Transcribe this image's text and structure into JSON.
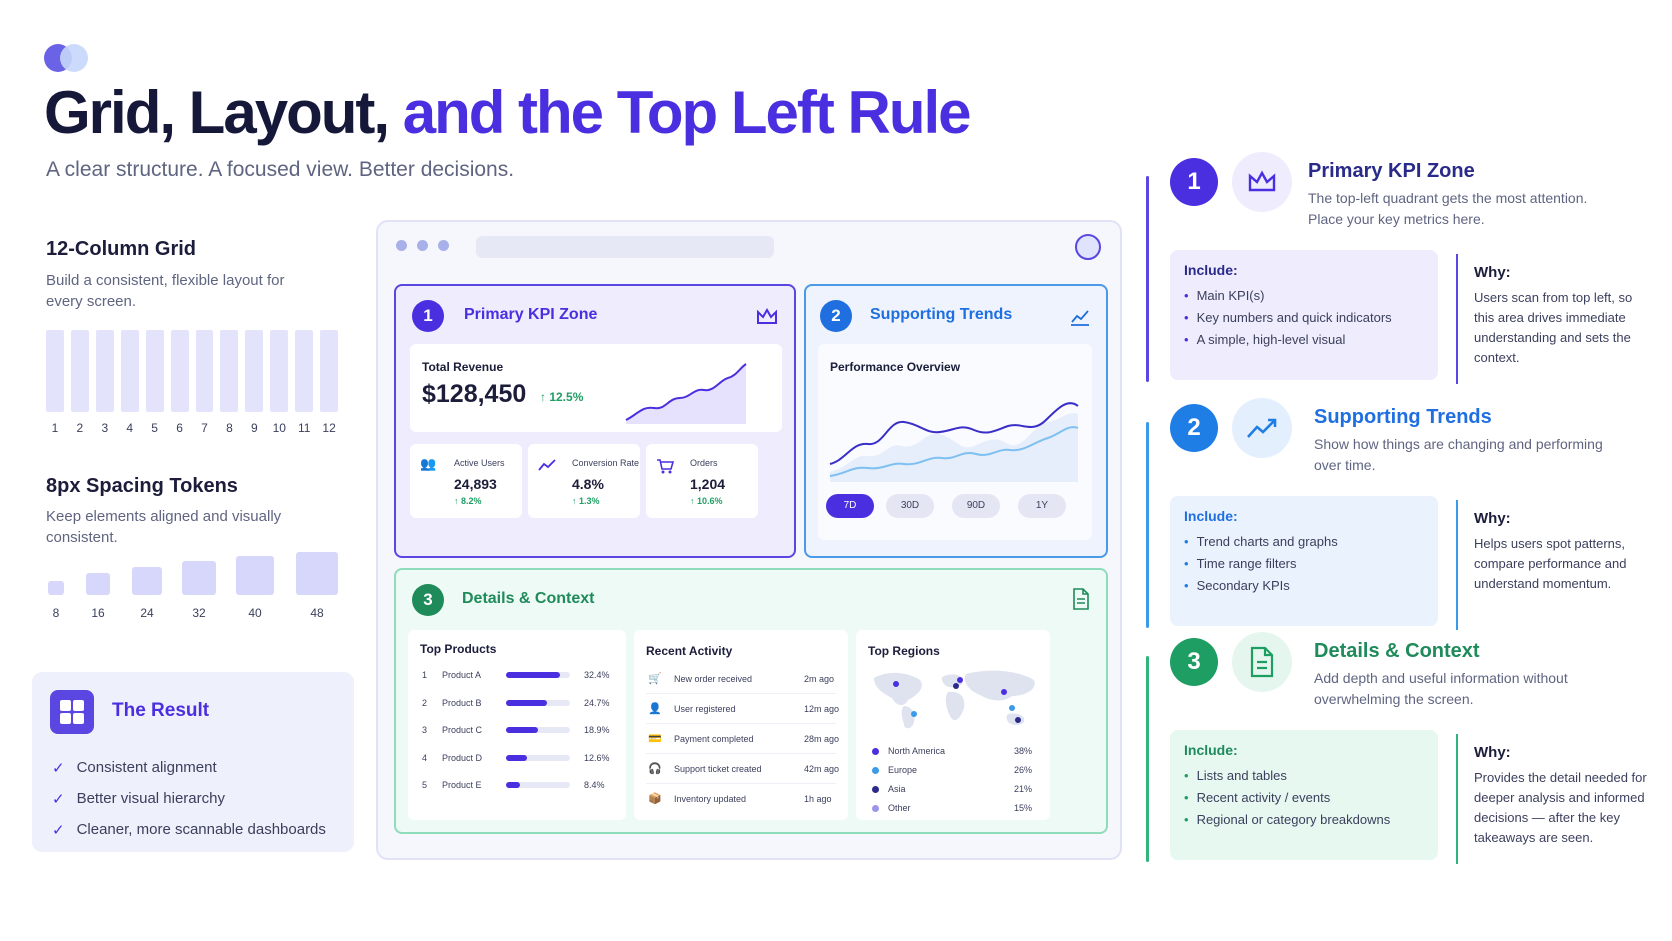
{
  "header": {
    "title_part1": "Grid, Layout,",
    "title_part2": "and the Top Left Rule",
    "subtitle": "A clear structure. A focused view. Better decisions."
  },
  "grid": {
    "title": "12-Column Grid",
    "desc": "Build a consistent, flexible layout for every screen.",
    "columns": [
      "1",
      "2",
      "3",
      "4",
      "5",
      "6",
      "7",
      "8",
      "9",
      "10",
      "11",
      "12"
    ]
  },
  "spacing": {
    "title": "8px Spacing Tokens",
    "desc": "Keep elements aligned and visually consistent.",
    "tokens": [
      "8",
      "16",
      "24",
      "32",
      "40",
      "48"
    ]
  },
  "result": {
    "title": "The Result",
    "items": [
      "Consistent alignment",
      "Better visual hierarchy",
      "Cleaner, more scannable dashboards"
    ]
  },
  "dashboard": {
    "kpi": {
      "num": "1",
      "title": "Primary KPI Zone",
      "revenue_label": "Total Revenue",
      "revenue_value": "$128,450",
      "revenue_change": "↑ 12.5%",
      "mini": [
        {
          "label": "Active Users",
          "value": "24,893",
          "change": "↑ 8.2%"
        },
        {
          "label": "Conversion Rate",
          "value": "4.8%",
          "change": "↑ 1.3%"
        },
        {
          "label": "Orders",
          "value": "1,204",
          "change": "↑ 10.6%"
        }
      ]
    },
    "trends": {
      "num": "2",
      "title": "Supporting Trends",
      "chart_label": "Performance Overview",
      "ranges": [
        "7D",
        "30D",
        "90D",
        "1Y"
      ]
    },
    "details": {
      "num": "3",
      "title": "Details & Context",
      "products_label": "Top Products",
      "products": [
        {
          "rank": "1",
          "name": "Product A",
          "pct": "32.4%",
          "share": 0.324
        },
        {
          "rank": "2",
          "name": "Product B",
          "pct": "24.7%",
          "share": 0.247
        },
        {
          "rank": "3",
          "name": "Product C",
          "pct": "18.9%",
          "share": 0.189
        },
        {
          "rank": "4",
          "name": "Product D",
          "pct": "12.6%",
          "share": 0.126
        },
        {
          "rank": "5",
          "name": "Product E",
          "pct": "8.4%",
          "share": 0.084
        }
      ],
      "activity_label": "Recent Activity",
      "activity": [
        {
          "text": "New order received",
          "time": "2m ago"
        },
        {
          "text": "User registered",
          "time": "12m ago"
        },
        {
          "text": "Payment completed",
          "time": "28m ago"
        },
        {
          "text": "Support ticket created",
          "time": "42m ago"
        },
        {
          "text": "Inventory updated",
          "time": "1h ago"
        }
      ],
      "regions_label": "Top Regions",
      "regions": [
        {
          "name": "North America",
          "pct": "38%",
          "color": "#4a2fe0"
        },
        {
          "name": "Europe",
          "pct": "26%",
          "color": "#3b9be8"
        },
        {
          "name": "Asia",
          "pct": "21%",
          "color": "#2a2a8a"
        },
        {
          "name": "Other",
          "pct": "15%",
          "color": "#9d95ea"
        }
      ]
    }
  },
  "right": [
    {
      "num": "1",
      "title": "Primary KPI Zone",
      "desc": "The top-left quadrant gets the most attention. Place your key metrics here.",
      "include_label": "Include:",
      "include": [
        "Main KPI(s)",
        "Key numbers and quick indicators",
        "A simple, high-level visual"
      ],
      "why_label": "Why:",
      "why": "Users scan from top left, so this area drives immediate understanding and sets the context."
    },
    {
      "num": "2",
      "title": "Supporting Trends",
      "desc": "Show how things are changing and performing over time.",
      "include_label": "Include:",
      "include": [
        "Trend charts and graphs",
        "Time range filters",
        "Secondary KPIs"
      ],
      "why_label": "Why:",
      "why": "Helps users spot patterns, compare performance and understand momentum."
    },
    {
      "num": "3",
      "title": "Details & Context",
      "desc": "Add depth and useful information without overwhelming the screen.",
      "include_label": "Include:",
      "include": [
        "Lists and tables",
        "Recent activity / events",
        "Regional or category breakdowns"
      ],
      "why_label": "Why:",
      "why": "Provides the detail needed for deeper analysis and informed decisions — after the key takeaways are seen."
    }
  ],
  "colors": {
    "purple": "#4a2fe0",
    "blue": "#1f7ee6",
    "green": "#1f9e63"
  }
}
